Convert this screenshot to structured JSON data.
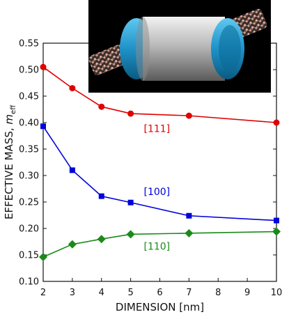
{
  "chart_data": {
    "type": "line",
    "title": "",
    "xlabel": "DIMENSION [nm]",
    "ylabel_main": "EFFECTIVE MASS, ",
    "ylabel_symbol": "m",
    "ylabel_subscript": "eff",
    "xlim": [
      2,
      10
    ],
    "ylim": [
      0.1,
      0.55
    ],
    "x_ticks": [
      "2",
      "3",
      "4",
      "5",
      "6",
      "7",
      "8",
      "9",
      "10"
    ],
    "y_ticks": [
      "0.10",
      "0.15",
      "0.20",
      "0.25",
      "0.30",
      "0.35",
      "0.40",
      "0.45",
      "0.50",
      "0.55"
    ],
    "grid": false,
    "series": [
      {
        "name": "[111]",
        "color": "#e00000",
        "marker": "circle",
        "x": [
          2,
          3,
          4,
          5,
          7,
          10
        ],
        "y": [
          0.505,
          0.465,
          0.43,
          0.417,
          0.413,
          0.4
        ]
      },
      {
        "name": "[100]",
        "color": "#0000dd",
        "marker": "square",
        "x": [
          2,
          3,
          4,
          5,
          7,
          10
        ],
        "y": [
          0.393,
          0.31,
          0.261,
          0.249,
          0.224,
          0.215
        ]
      },
      {
        "name": "[110]",
        "color": "#1a8a1a",
        "marker": "diamond",
        "x": [
          2,
          3,
          4,
          5,
          7,
          10
        ],
        "y": [
          0.146,
          0.17,
          0.18,
          0.189,
          0.191,
          0.194
        ]
      }
    ],
    "inset_image": "nanowire-device-illustration"
  }
}
